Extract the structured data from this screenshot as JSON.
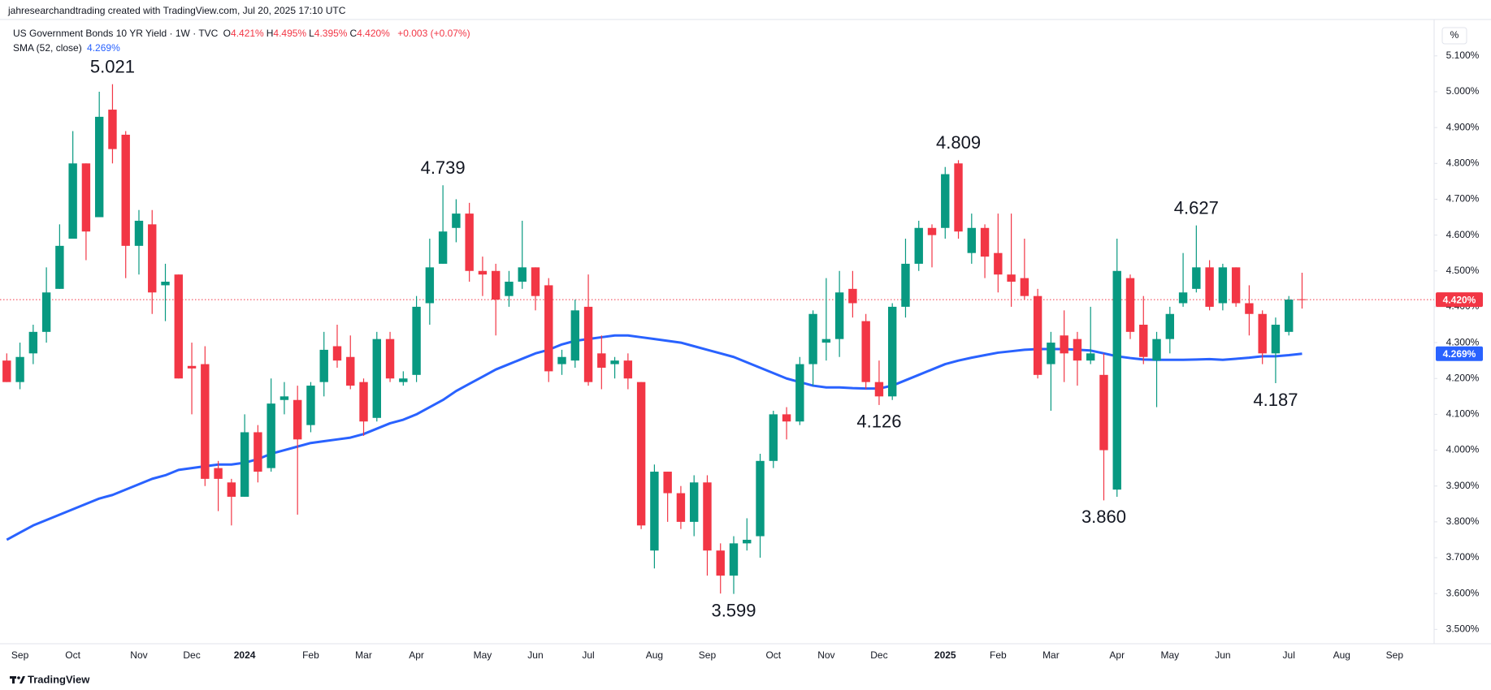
{
  "header": "jahresearchandtrading created with TradingView.com, Jul 20, 2025 17:10 UTC",
  "footer": "TradingView",
  "chart_data": {
    "type": "candlestick",
    "legend": {
      "symbol": "US Government Bonds 10 YR Yield · 1W · TVC",
      "ohlc": [
        {
          "key": "O",
          "text": "4.421%"
        },
        {
          "key": "H",
          "text": "4.495%"
        },
        {
          "key": "L",
          "text": "4.395%"
        },
        {
          "key": "C",
          "text": "4.420%"
        }
      ],
      "change": "+0.003 (+0.07%)"
    },
    "axis_unit": "%",
    "up_color": "#089981",
    "down_color": "#f23645",
    "grid": false,
    "ylim": [
      3.46,
      5.2015
    ],
    "yticks": [
      {
        "value": 3.5,
        "label": "3.500%"
      },
      {
        "value": 3.6,
        "label": "3.600%"
      },
      {
        "value": 3.7,
        "label": "3.700%"
      },
      {
        "value": 3.8,
        "label": "3.800%"
      },
      {
        "value": 3.9,
        "label": "3.900%"
      },
      {
        "value": 4.0,
        "label": "4.000%"
      },
      {
        "value": 4.1,
        "label": "4.100%"
      },
      {
        "value": 4.2,
        "label": "4.200%"
      },
      {
        "value": 4.3,
        "label": "4.300%"
      },
      {
        "value": 4.4,
        "label": "4.400%"
      },
      {
        "value": 4.5,
        "label": "4.500%"
      },
      {
        "value": 4.6,
        "label": "4.600%"
      },
      {
        "value": 4.7,
        "label": "4.700%"
      },
      {
        "value": 4.8,
        "label": "4.800%"
      },
      {
        "value": 4.9,
        "label": "4.900%"
      },
      {
        "value": 5.0,
        "label": "5.000%"
      },
      {
        "value": 5.1,
        "label": "5.100%"
      }
    ],
    "categories": [
      null,
      "Sep",
      null,
      null,
      null,
      "Oct",
      null,
      null,
      null,
      null,
      "Nov",
      null,
      null,
      null,
      "Dec",
      null,
      null,
      null,
      "2024",
      null,
      null,
      null,
      null,
      "Feb",
      null,
      null,
      null,
      "Mar",
      null,
      null,
      null,
      "Apr",
      null,
      null,
      null,
      null,
      "May",
      null,
      null,
      null,
      "Jun",
      null,
      null,
      null,
      "Jul",
      null,
      null,
      null,
      null,
      "Aug",
      null,
      null,
      null,
      "Sep",
      null,
      null,
      null,
      null,
      "Oct",
      null,
      null,
      null,
      "Nov",
      null,
      null,
      null,
      "Dec",
      null,
      null,
      null,
      null,
      "2025",
      null,
      null,
      null,
      "Feb",
      null,
      null,
      null,
      "Mar",
      null,
      null,
      null,
      null,
      "Apr",
      null,
      null,
      null,
      "May",
      null,
      null,
      null,
      "Jun",
      null,
      null,
      null,
      null,
      "Jul",
      null,
      null,
      null,
      "Aug",
      null,
      null,
      null,
      "Sep"
    ],
    "open": [
      4.25,
      4.19,
      4.27,
      4.33,
      4.45,
      4.59,
      4.8,
      4.65,
      4.95,
      4.88,
      4.57,
      4.63,
      4.46,
      4.49,
      4.235,
      4.24,
      3.95,
      3.91,
      3.87,
      4.05,
      3.95,
      4.14,
      4.14,
      4.07,
      4.19,
      4.29,
      4.26,
      4.19,
      4.09,
      4.31,
      4.19,
      4.21,
      4.41,
      4.52,
      4.62,
      4.66,
      4.5,
      4.5,
      4.43,
      4.47,
      4.51,
      4.46,
      4.24,
      4.25,
      4.4,
      4.27,
      4.24,
      4.25,
      4.19,
      3.72,
      3.94,
      3.88,
      3.8,
      3.91,
      3.72,
      3.65,
      3.74,
      3.76,
      3.97,
      4.1,
      4.08,
      4.24,
      4.3,
      4.31,
      4.45,
      4.36,
      4.19,
      4.15,
      4.4,
      4.52,
      4.62,
      4.62,
      4.8,
      4.55,
      4.62,
      4.55,
      4.49,
      4.48,
      4.43,
      4.24,
      4.32,
      4.31,
      4.25,
      4.21,
      3.89,
      4.48,
      4.35,
      4.25,
      4.31,
      4.41,
      4.45,
      4.51,
      4.41,
      4.51,
      4.41,
      4.38,
      4.27,
      4.33,
      4.421,
      null,
      null,
      null,
      null,
      null,
      null,
      null
    ],
    "high": [
      4.27,
      4.3,
      4.35,
      4.51,
      4.63,
      4.89,
      4.8,
      5.0,
      5.021,
      4.89,
      4.67,
      4.67,
      4.52,
      4.49,
      4.3,
      4.29,
      3.97,
      3.92,
      4.1,
      4.07,
      4.2,
      4.19,
      4.18,
      4.19,
      4.33,
      4.35,
      4.32,
      4.2,
      4.33,
      4.33,
      4.22,
      4.43,
      4.59,
      4.739,
      4.7,
      4.69,
      4.54,
      4.52,
      4.5,
      4.64,
      4.51,
      4.48,
      4.28,
      4.42,
      4.49,
      4.32,
      4.26,
      4.27,
      4.19,
      3.96,
      3.94,
      3.9,
      3.93,
      3.93,
      3.74,
      3.76,
      3.81,
      3.99,
      4.11,
      4.12,
      4.26,
      4.39,
      4.48,
      4.5,
      4.5,
      4.38,
      4.25,
      4.41,
      4.59,
      4.64,
      4.63,
      4.79,
      4.809,
      4.66,
      4.63,
      4.66,
      4.66,
      4.59,
      4.45,
      4.33,
      4.39,
      4.33,
      4.4,
      4.27,
      4.59,
      4.49,
      4.43,
      4.33,
      4.4,
      4.55,
      4.627,
      4.53,
      4.52,
      4.51,
      4.46,
      4.39,
      4.37,
      4.43,
      4.495,
      null,
      null,
      null,
      null,
      null,
      null,
      null
    ],
    "low": [
      4.19,
      4.17,
      4.24,
      4.3,
      4.45,
      4.59,
      4.53,
      4.65,
      4.8,
      4.48,
      4.49,
      4.38,
      4.36,
      4.2,
      4.1,
      3.9,
      3.83,
      3.79,
      3.87,
      3.91,
      3.94,
      4.1,
      3.82,
      4.05,
      4.15,
      4.23,
      4.17,
      4.04,
      4.08,
      4.19,
      4.18,
      4.19,
      4.35,
      4.52,
      4.58,
      4.47,
      4.43,
      4.32,
      4.4,
      4.45,
      4.39,
      4.19,
      4.21,
      4.23,
      4.18,
      4.17,
      4.2,
      4.17,
      3.78,
      3.67,
      3.8,
      3.78,
      3.76,
      3.65,
      3.6,
      3.599,
      3.72,
      3.7,
      3.95,
      4.03,
      4.07,
      4.18,
      4.25,
      4.26,
      4.37,
      4.17,
      4.126,
      4.14,
      4.37,
      4.5,
      4.51,
      4.59,
      4.59,
      4.52,
      4.48,
      4.44,
      4.4,
      4.42,
      4.2,
      4.11,
      4.19,
      4.18,
      4.24,
      3.86,
      3.87,
      4.31,
      4.24,
      4.12,
      4.27,
      4.4,
      4.44,
      4.39,
      4.39,
      4.4,
      4.32,
      4.24,
      4.187,
      4.32,
      4.395,
      null,
      null,
      null,
      null,
      null,
      null,
      null
    ],
    "close": [
      4.19,
      4.26,
      4.33,
      4.44,
      4.57,
      4.8,
      4.61,
      4.93,
      4.84,
      4.57,
      4.64,
      4.44,
      4.47,
      4.2,
      4.228,
      3.92,
      3.92,
      3.87,
      4.05,
      3.94,
      4.13,
      4.15,
      4.03,
      4.18,
      4.28,
      4.25,
      4.18,
      4.08,
      4.31,
      4.2,
      4.2,
      4.4,
      4.51,
      4.61,
      4.66,
      4.5,
      4.49,
      4.42,
      4.47,
      4.51,
      4.43,
      4.22,
      4.26,
      4.39,
      4.19,
      4.23,
      4.25,
      4.2,
      3.79,
      3.94,
      3.88,
      3.8,
      3.91,
      3.72,
      3.65,
      3.74,
      3.75,
      3.97,
      4.1,
      4.08,
      4.24,
      4.38,
      4.31,
      4.44,
      4.41,
      4.19,
      4.15,
      4.4,
      4.52,
      4.62,
      4.6,
      4.77,
      4.61,
      4.62,
      4.54,
      4.49,
      4.47,
      4.43,
      4.21,
      4.3,
      4.27,
      4.25,
      4.27,
      4.0,
      4.5,
      4.33,
      4.26,
      4.31,
      4.38,
      4.44,
      4.51,
      4.4,
      4.51,
      4.41,
      4.38,
      4.27,
      4.35,
      4.42,
      4.42,
      null,
      null,
      null,
      null,
      null,
      null,
      null
    ],
    "sma": {
      "name": "SMA (52, close)",
      "color": "#2962ff",
      "last_label": "4.269%",
      "last_value": 4.269,
      "values": [
        3.75,
        3.77,
        3.79,
        3.805,
        3.82,
        3.835,
        3.85,
        3.865,
        3.875,
        3.89,
        3.905,
        3.92,
        3.93,
        3.945,
        3.95,
        3.955,
        3.96,
        3.96,
        3.965,
        3.975,
        3.99,
        4.0,
        4.01,
        4.02,
        4.025,
        4.03,
        4.035,
        4.045,
        4.06,
        4.075,
        4.085,
        4.1,
        4.12,
        4.14,
        4.165,
        4.185,
        4.205,
        4.225,
        4.24,
        4.255,
        4.27,
        4.28,
        4.295,
        4.305,
        4.31,
        4.315,
        4.32,
        4.32,
        4.315,
        4.31,
        4.305,
        4.3,
        4.29,
        4.28,
        4.27,
        4.26,
        4.245,
        4.23,
        4.215,
        4.2,
        4.19,
        4.18,
        4.175,
        4.175,
        4.173,
        4.172,
        4.172,
        4.18,
        4.195,
        4.21,
        4.225,
        4.24,
        4.25,
        4.258,
        4.265,
        4.272,
        4.276,
        4.28,
        4.282,
        4.282,
        4.282,
        4.28,
        4.278,
        4.27,
        4.262,
        4.257,
        4.253,
        4.252,
        4.252,
        4.252,
        4.253,
        4.254,
        4.252,
        4.255,
        4.258,
        4.262,
        4.262,
        4.265,
        4.269,
        null,
        null,
        null,
        null,
        null,
        null,
        null
      ]
    },
    "last_price": {
      "value": 4.42,
      "label": "4.420%",
      "color": "#f23645"
    },
    "annotations": [
      {
        "text": "5.021"
      },
      {
        "text": "4.739"
      },
      {
        "text": "4.809"
      },
      {
        "text": "4.627"
      },
      {
        "text": "4.126"
      },
      {
        "text": "3.599"
      },
      {
        "text": "3.860"
      },
      {
        "text": "4.187"
      }
    ]
  }
}
